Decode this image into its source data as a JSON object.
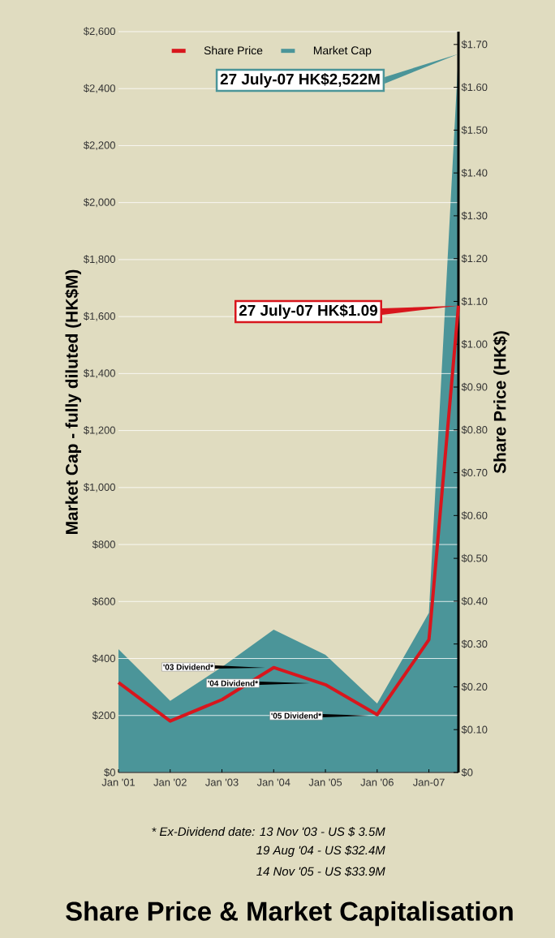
{
  "chart_data": {
    "type": "line",
    "title": "Share Price & Market Capitalisation",
    "xlabel": null,
    "ylabel": "Market Cap - fully diluted (HK$M)",
    "y2label": "Share Price (HK$)",
    "xlim": [
      "2001-01",
      "2007-07-27"
    ],
    "xticks": [
      {
        "value": "2001-01",
        "label": "Jan '01"
      },
      {
        "value": "2002-01",
        "label": "Jan '02"
      },
      {
        "value": "2003-01",
        "label": "Jan '03"
      },
      {
        "value": "2004-01",
        "label": "Jan '04"
      },
      {
        "value": "2005-01",
        "label": "Jan '05"
      },
      {
        "value": "2006-01",
        "label": "Jan '06"
      },
      {
        "value": "2007-01",
        "label": "Jan-07"
      }
    ],
    "ylim": [
      0,
      2600
    ],
    "yticks": [
      {
        "value": 0,
        "label": "$0"
      },
      {
        "value": 200,
        "label": "$200"
      },
      {
        "value": 400,
        "label": "$400"
      },
      {
        "value": 600,
        "label": "$600"
      },
      {
        "value": 800,
        "label": "$800"
      },
      {
        "value": 1000,
        "label": "$1,000"
      },
      {
        "value": 1200,
        "label": "$1,200"
      },
      {
        "value": 1400,
        "label": "$1,400"
      },
      {
        "value": 1600,
        "label": "$1,600"
      },
      {
        "value": 1800,
        "label": "$1,800"
      },
      {
        "value": 2000,
        "label": "$2,000"
      },
      {
        "value": 2200,
        "label": "$2,200"
      },
      {
        "value": 2400,
        "label": "$2,400"
      },
      {
        "value": 2600,
        "label": "$2,600"
      }
    ],
    "y2lim": [
      0,
      1.73
    ],
    "y2ticks": [
      {
        "value": 0,
        "label": "$0"
      },
      {
        "value": 0.1,
        "label": "$0.10"
      },
      {
        "value": 0.2,
        "label": "$0.20"
      },
      {
        "value": 0.3,
        "label": "$0.30"
      },
      {
        "value": 0.4,
        "label": "$0.40"
      },
      {
        "value": 0.5,
        "label": "$0.50"
      },
      {
        "value": 0.6,
        "label": "$0.60"
      },
      {
        "value": 0.7,
        "label": "$0.70"
      },
      {
        "value": 0.8,
        "label": "$0.80"
      },
      {
        "value": 0.9,
        "label": "$0.90"
      },
      {
        "value": 1.0,
        "label": "$1.00"
      },
      {
        "value": 1.1,
        "label": "$1.10"
      },
      {
        "value": 1.2,
        "label": "$1.20"
      },
      {
        "value": 1.3,
        "label": "$1.30"
      },
      {
        "value": 1.4,
        "label": "$1.40"
      },
      {
        "value": 1.5,
        "label": "$1.50"
      },
      {
        "value": 1.6,
        "label": "$1.60"
      },
      {
        "value": 1.7,
        "label": "$1.70"
      }
    ],
    "grid": "y",
    "legend": "top",
    "series": [
      {
        "name": "Share Price",
        "axis": "y2",
        "color": "#d8161d",
        "x": [
          "2001-01",
          "2002-01",
          "2003-01",
          "2004-01",
          "2005-01",
          "2006-01",
          "2007-01",
          "2007-01-10",
          "2007-07-27"
        ],
        "values": [
          0.21,
          0.12,
          0.17,
          0.245,
          0.205,
          0.135,
          0.31,
          0.34,
          1.09
        ]
      },
      {
        "name": "Market Cap",
        "type": "area",
        "color": "#4b9599",
        "x": [
          "2001-01",
          "2002-01",
          "2003-01",
          "2004-01",
          "2005-01",
          "2006-01",
          "2007-01",
          "2007-07-27"
        ],
        "values": [
          433,
          251,
          370,
          501,
          413,
          242,
          560,
          2522
        ]
      }
    ],
    "annotations": [
      "27 July-07 HK$2,522M",
      "27 July-07 HK$1.09",
      "'03 Dividend*",
      "'04 Dividend*",
      "'05 Dividend*",
      "* Ex-Dividend date:  13 Nov '03 - US $  3.5M",
      "19 Aug '04 - US $32.4M",
      "14 Nov '05 - US $33.9M"
    ]
  }
}
